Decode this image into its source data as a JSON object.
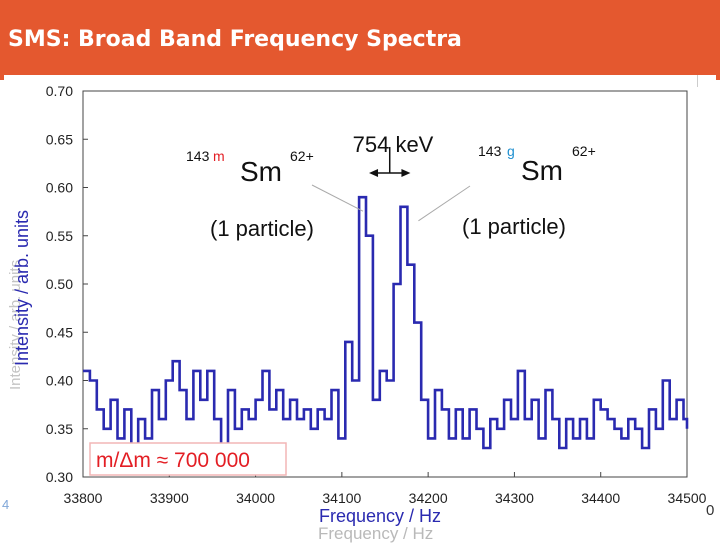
{
  "slide": {
    "title": "SMS: Broad Band Frequency Spectra",
    "bg_ghost_x_label": "Frequency / Hz",
    "bg_ghost_y_label": "Intensity / arb. units",
    "edge_mark_left": "4",
    "edge_mark_right": "0"
  },
  "colors": {
    "title_bar": "#e4582f",
    "trace": "#2a2ab0",
    "axis_label": "#2a2ab0",
    "m_box_border": "#f2b6b6",
    "m_box_text": "#e31e24",
    "superscript_m": "#e31e24",
    "superscript_g": "#1e8fd0"
  },
  "chart_data": {
    "type": "line",
    "title": "",
    "xlabel": "Frequency / Hz",
    "ylabel": "Intensity / arb. units",
    "xlim": [
      33800,
      34500
    ],
    "ylim": [
      0.3,
      0.7
    ],
    "x_ticks": [
      "33800",
      "33900",
      "34000",
      "34100",
      "34200",
      "34300",
      "34400",
      "34500"
    ],
    "y_ticks": [
      "0.30",
      "0.35",
      "0.40",
      "0.45",
      "0.50",
      "0.55",
      "0.60",
      "0.65",
      "0.70"
    ],
    "grid": false,
    "series": [
      {
        "name": "spectrum",
        "step": true,
        "x": [
          33800,
          33808,
          33816,
          33824,
          33832,
          33840,
          33848,
          33856,
          33864,
          33872,
          33880,
          33888,
          33896,
          33904,
          33912,
          33920,
          33928,
          33936,
          33944,
          33952,
          33960,
          33968,
          33976,
          33984,
          33992,
          34000,
          34008,
          34016,
          34024,
          34032,
          34040,
          34048,
          34056,
          34064,
          34072,
          34080,
          34088,
          34096,
          34104,
          34112,
          34120,
          34128,
          34136,
          34144,
          34152,
          34160,
          34168,
          34176,
          34184,
          34192,
          34200,
          34208,
          34216,
          34224,
          34232,
          34240,
          34248,
          34256,
          34264,
          34272,
          34280,
          34288,
          34296,
          34304,
          34312,
          34320,
          34328,
          34336,
          34344,
          34352,
          34360,
          34368,
          34376,
          34384,
          34392,
          34400,
          34408,
          34416,
          34424,
          34432,
          34440,
          34448,
          34456,
          34464,
          34472,
          34480,
          34488,
          34496,
          34500
        ],
        "values": [
          0.41,
          0.4,
          0.37,
          0.35,
          0.38,
          0.34,
          0.37,
          0.33,
          0.36,
          0.34,
          0.39,
          0.36,
          0.4,
          0.42,
          0.39,
          0.36,
          0.41,
          0.38,
          0.41,
          0.36,
          0.33,
          0.39,
          0.35,
          0.37,
          0.36,
          0.38,
          0.41,
          0.37,
          0.39,
          0.36,
          0.38,
          0.36,
          0.37,
          0.35,
          0.37,
          0.36,
          0.39,
          0.34,
          0.44,
          0.4,
          0.59,
          0.55,
          0.38,
          0.41,
          0.4,
          0.5,
          0.58,
          0.52,
          0.46,
          0.38,
          0.34,
          0.39,
          0.37,
          0.34,
          0.37,
          0.34,
          0.37,
          0.35,
          0.33,
          0.36,
          0.35,
          0.38,
          0.36,
          0.41,
          0.36,
          0.38,
          0.34,
          0.39,
          0.36,
          0.33,
          0.36,
          0.34,
          0.36,
          0.34,
          0.38,
          0.37,
          0.36,
          0.35,
          0.34,
          0.36,
          0.35,
          0.33,
          0.37,
          0.35,
          0.4,
          0.36,
          0.38,
          0.36,
          0.35
        ]
      }
    ],
    "annotations": {
      "left_isotope": {
        "mass": "143",
        "state": "m",
        "element": "Sm",
        "charge": "62+",
        "count": "(1 particle)",
        "x": 34128,
        "y": 0.59
      },
      "right_isotope": {
        "mass": "143",
        "state": "g",
        "element": "Sm",
        "charge": "62+",
        "count": "(1 particle)",
        "x": 34176,
        "y": 0.58
      },
      "energy": {
        "label": "754 keV",
        "x1": 34128,
        "x2": 34176,
        "y": 0.615
      },
      "resolving_power": "m/Δm ≈ 700 000"
    }
  }
}
